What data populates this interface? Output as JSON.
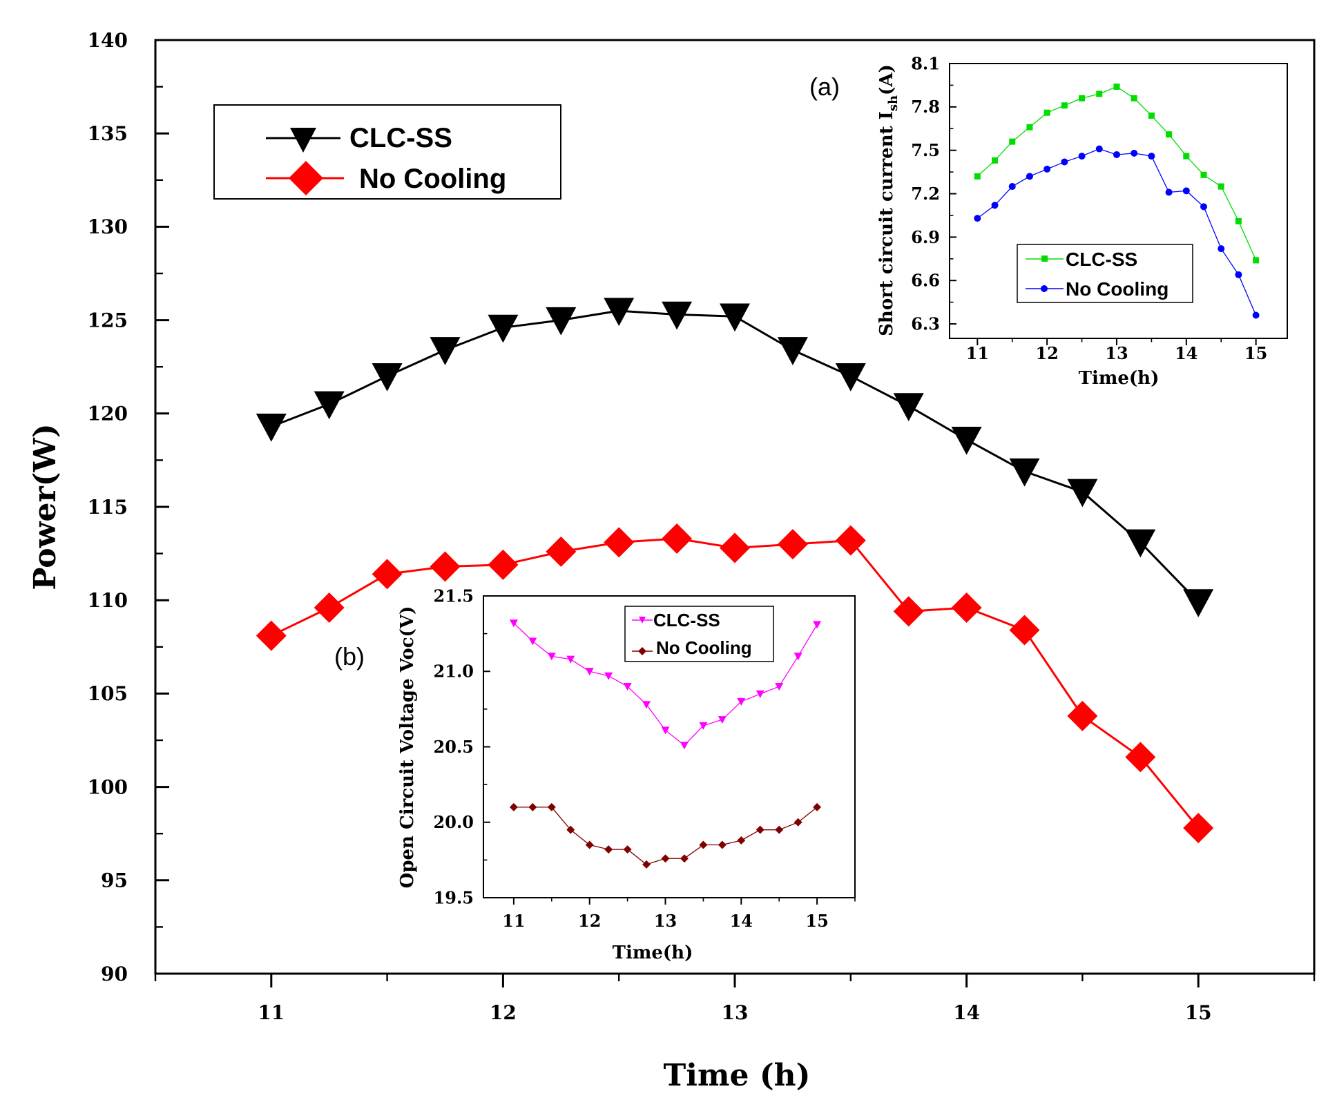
{
  "chart_data": [
    {
      "id": "main",
      "type": "line",
      "xlabel": "Time (h)",
      "ylabel": "Power(W)",
      "xlim": [
        10.5,
        15.5
      ],
      "ylim": [
        90,
        140
      ],
      "xticks": [
        11,
        12,
        13,
        14,
        15
      ],
      "xtick_labels": [
        "11",
        "12",
        "13",
        "14",
        "15"
      ],
      "yticks": [
        90,
        95,
        100,
        105,
        110,
        115,
        120,
        125,
        130,
        135,
        140
      ],
      "ytick_labels": [
        "90",
        "95",
        "100",
        "105",
        "110",
        "115",
        "120",
        "125",
        "130",
        "135",
        "140"
      ],
      "x": [
        11,
        11.25,
        11.5,
        11.75,
        12,
        12.25,
        12.5,
        12.75,
        13,
        13.25,
        13.5,
        13.75,
        14,
        14.25,
        14.5,
        14.75,
        15
      ],
      "series": [
        {
          "name": "CLC-SS",
          "color": "#000000",
          "marker": "triangle-down",
          "values": [
            119.3,
            120.5,
            122.0,
            123.4,
            124.6,
            125.0,
            125.5,
            125.3,
            125.2,
            123.4,
            122.0,
            120.4,
            118.6,
            116.9,
            115.8,
            113.1,
            109.9
          ]
        },
        {
          "name": "No Cooling",
          "color": "#ff0000",
          "marker": "diamond",
          "values": [
            108.1,
            109.6,
            111.4,
            111.8,
            111.9,
            112.6,
            113.1,
            113.3,
            112.8,
            113.0,
            113.2,
            109.4,
            109.6,
            108.4,
            103.8,
            101.6,
            97.8
          ]
        }
      ]
    },
    {
      "id": "inset_a",
      "type": "line",
      "panel_label": "(a)",
      "xlabel": "Time(h)",
      "ylabel_main": "Short circuit current I",
      "ylabel_sub": "sh",
      "ylabel_unit": "(A)",
      "xlim": [
        10.6,
        15.45
      ],
      "ylim": [
        6.2,
        8.1
      ],
      "xticks": [
        11,
        12,
        13,
        14,
        15
      ],
      "xtick_labels": [
        "11",
        "12",
        "13",
        "14",
        "15"
      ],
      "yticks": [
        6.3,
        6.6,
        6.9,
        7.2,
        7.5,
        7.8,
        8.1
      ],
      "ytick_labels": [
        "6.3",
        "6.6",
        "6.9",
        "7.2",
        "7.5",
        "7.8",
        "8.1"
      ],
      "x": [
        11,
        11.25,
        11.5,
        11.75,
        12,
        12.25,
        12.5,
        12.75,
        13,
        13.25,
        13.5,
        13.75,
        14,
        14.25,
        14.5,
        14.75,
        15
      ],
      "series": [
        {
          "name": "CLC-SS",
          "color": "#00dd00",
          "marker": "square",
          "values": [
            7.32,
            7.43,
            7.56,
            7.66,
            7.76,
            7.81,
            7.86,
            7.89,
            7.94,
            7.86,
            7.74,
            7.61,
            7.46,
            7.33,
            7.25,
            7.01,
            6.74
          ]
        },
        {
          "name": "No Cooling",
          "color": "#0000ff",
          "marker": "circle",
          "values": [
            7.03,
            7.12,
            7.25,
            7.32,
            7.37,
            7.42,
            7.46,
            7.51,
            7.47,
            7.48,
            7.46,
            7.21,
            7.22,
            7.11,
            6.82,
            6.64,
            6.36
          ]
        }
      ]
    },
    {
      "id": "inset_b",
      "type": "line",
      "panel_label": "(b)",
      "xlabel": "Time(h)",
      "ylabel": "Open Circuit Voltage Voc(V)",
      "xlim": [
        10.6,
        15.5
      ],
      "ylim": [
        19.5,
        21.5
      ],
      "xticks": [
        11,
        12,
        13,
        14,
        15
      ],
      "xtick_labels": [
        "11",
        "12",
        "13",
        "14",
        "15"
      ],
      "yticks": [
        19.5,
        20.0,
        20.5,
        21.0,
        21.5
      ],
      "ytick_labels": [
        "19.5",
        "20.0",
        "20.5",
        "21.0",
        "21.5"
      ],
      "x": [
        11,
        11.25,
        11.5,
        11.75,
        12,
        12.25,
        12.5,
        12.75,
        13,
        13.25,
        13.5,
        13.75,
        14,
        14.25,
        14.5,
        14.75,
        15
      ],
      "series": [
        {
          "name": "CLC-SS",
          "color": "#ff00ff",
          "marker": "triangle-down",
          "values": [
            21.32,
            21.2,
            21.1,
            21.08,
            21.0,
            20.97,
            20.9,
            20.78,
            20.61,
            20.51,
            20.64,
            20.68,
            20.8,
            20.85,
            20.9,
            21.1,
            21.31
          ]
        },
        {
          "name": "No Cooling",
          "color": "#800000",
          "marker": "diamond",
          "values": [
            20.1,
            20.1,
            20.1,
            19.95,
            19.85,
            19.82,
            19.82,
            19.72,
            19.76,
            19.76,
            19.85,
            19.85,
            19.88,
            19.95,
            19.95,
            20.0,
            20.1
          ]
        }
      ]
    }
  ]
}
